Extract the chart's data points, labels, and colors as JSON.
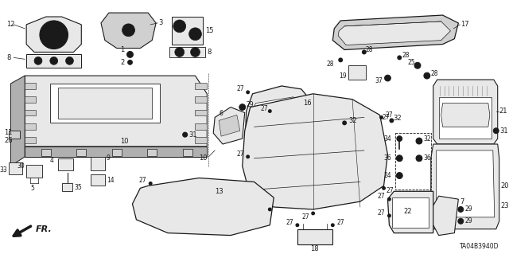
{
  "background_color": "#ffffff",
  "diagram_code": "TA04B3940D",
  "line_color": "#1a1a1a",
  "fig_width": 6.4,
  "fig_height": 3.19,
  "dpi": 100,
  "label_fontsize": 6.0,
  "gray_fill": "#d0d0d0",
  "light_gray": "#e8e8e8",
  "mid_gray": "#b0b0b0"
}
